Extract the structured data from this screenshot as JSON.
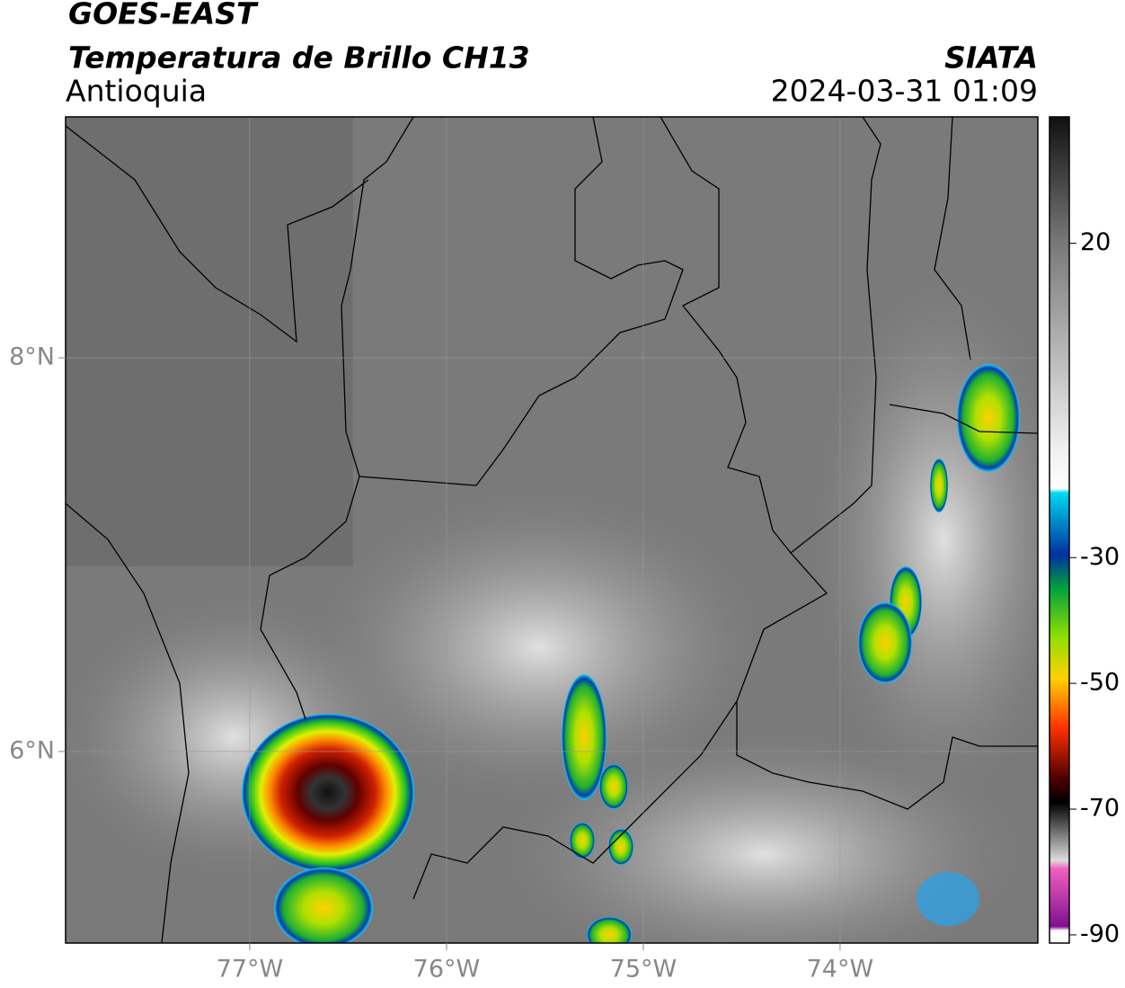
{
  "header": {
    "satellite": "GOES-EAST",
    "product": "Temperatura de Brillo CH13",
    "region": "Antioquia",
    "source": "SIATA",
    "datetime": "2024-03-31 01:09"
  },
  "map": {
    "lon_range": [
      -77.936,
      -72.995
    ],
    "lat_range": [
      5.027,
      9.224
    ],
    "lon_ticks": [
      {
        "value": -77,
        "label": "77°W"
      },
      {
        "value": -76,
        "label": "76°W"
      },
      {
        "value": -75,
        "label": "75°W"
      },
      {
        "value": -74,
        "label": "74°W"
      }
    ],
    "lat_ticks": [
      {
        "value": 8,
        "label": "8°N"
      },
      {
        "value": 6,
        "label": "6°N"
      }
    ],
    "grid": true
  },
  "colorbar": {
    "range": [
      -91.3,
      40.1
    ],
    "ticks": [
      20,
      -30,
      -50,
      -70,
      -90
    ]
  }
}
